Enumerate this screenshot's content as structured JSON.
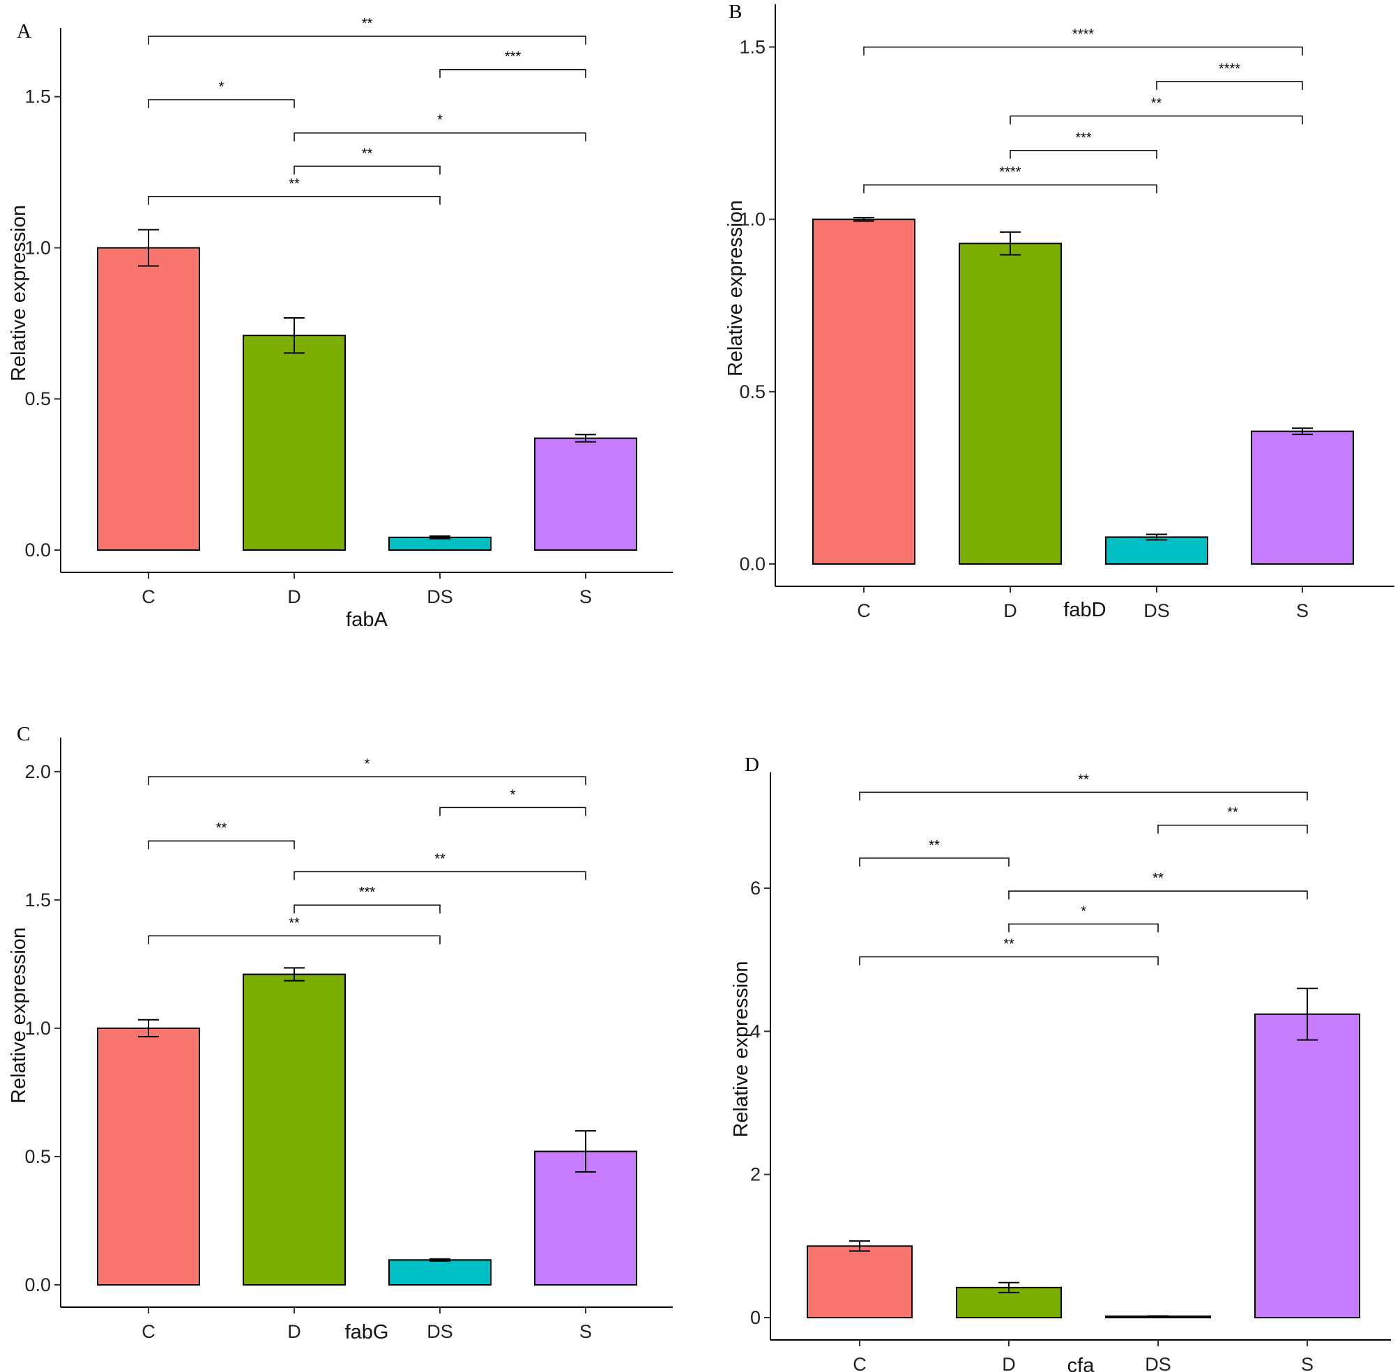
{
  "chart_data": [
    {
      "type": "bar",
      "panel_label": "A",
      "xlabel": "fabA",
      "ylabel": "Relative expression",
      "categories": [
        "C",
        "D",
        "DS",
        "S"
      ],
      "values": [
        1.0,
        0.71,
        0.042,
        0.37
      ],
      "errors": [
        0.06,
        0.058,
        0.004,
        0.012
      ],
      "ylim": [
        0,
        1.7
      ],
      "yticks": [
        0.0,
        0.5,
        1.0,
        1.5
      ],
      "ytick_labels": [
        "0.0",
        "0.5",
        "1.0",
        "1.5"
      ],
      "grid": false,
      "colors": [
        "#F8766D",
        "#7CAE00",
        "#00BFC4",
        "#C77CFF"
      ],
      "comparisons": [
        {
          "from": "C",
          "to": "DS",
          "y": 1.17,
          "label": "**"
        },
        {
          "from": "D",
          "to": "DS",
          "y": 1.27,
          "label": "**"
        },
        {
          "from": "D",
          "to": "S",
          "y": 1.38,
          "label": "*"
        },
        {
          "from": "C",
          "to": "D",
          "y": 1.49,
          "label": "*"
        },
        {
          "from": "DS",
          "to": "S",
          "y": 1.59,
          "label": "***"
        },
        {
          "from": "C",
          "to": "S",
          "y": 1.7,
          "label": "**"
        }
      ]
    },
    {
      "type": "bar",
      "panel_label": "B",
      "xlabel": "fabD",
      "ylabel": "Relative expression",
      "categories": [
        "C",
        "D",
        "DS",
        "S"
      ],
      "values": [
        1.0,
        0.93,
        0.078,
        0.385
      ],
      "errors": [
        0.005,
        0.033,
        0.008,
        0.009
      ],
      "ylim": [
        0,
        1.6
      ],
      "yticks": [
        0.0,
        0.5,
        1.0,
        1.5
      ],
      "ytick_labels": [
        "0.0",
        "0.5",
        "1.0",
        "1.5"
      ],
      "grid": false,
      "colors": [
        "#F8766D",
        "#7CAE00",
        "#00BFC4",
        "#C77CFF"
      ],
      "comparisons": [
        {
          "from": "C",
          "to": "DS",
          "y": 1.1,
          "label": "****"
        },
        {
          "from": "D",
          "to": "DS",
          "y": 1.2,
          "label": "***"
        },
        {
          "from": "D",
          "to": "S",
          "y": 1.3,
          "label": "**"
        },
        {
          "from": "DS",
          "to": "S",
          "y": 1.4,
          "label": "****"
        },
        {
          "from": "C",
          "to": "S",
          "y": 1.5,
          "label": "****"
        }
      ]
    },
    {
      "type": "bar",
      "panel_label": "C",
      "xlabel": "fabG",
      "ylabel": "Relative expression",
      "categories": [
        "C",
        "D",
        "DS",
        "S"
      ],
      "values": [
        1.0,
        1.21,
        0.097,
        0.52
      ],
      "errors": [
        0.033,
        0.025,
        0.004,
        0.08
      ],
      "ylim": [
        0,
        2.1
      ],
      "yticks": [
        0.0,
        0.5,
        1.0,
        1.5,
        2.0
      ],
      "ytick_labels": [
        "0.0",
        "0.5",
        "1.0",
        "1.5",
        "2.0"
      ],
      "grid": false,
      "colors": [
        "#F8766D",
        "#7CAE00",
        "#00BFC4",
        "#C77CFF"
      ],
      "comparisons": [
        {
          "from": "C",
          "to": "DS",
          "y": 1.36,
          "label": "**"
        },
        {
          "from": "D",
          "to": "DS",
          "y": 1.48,
          "label": "***"
        },
        {
          "from": "D",
          "to": "S",
          "y": 1.61,
          "label": "**"
        },
        {
          "from": "C",
          "to": "D",
          "y": 1.73,
          "label": "**"
        },
        {
          "from": "DS",
          "to": "S",
          "y": 1.86,
          "label": "*"
        },
        {
          "from": "C",
          "to": "S",
          "y": 1.98,
          "label": "*"
        }
      ]
    },
    {
      "type": "bar",
      "panel_label": "D",
      "xlabel": "cfa",
      "ylabel": "Relative expression",
      "categories": [
        "C",
        "D",
        "DS",
        "S"
      ],
      "values": [
        1.0,
        0.42,
        0.02,
        4.24
      ],
      "errors": [
        0.07,
        0.07,
        0.003,
        0.36
      ],
      "ylim": [
        0,
        7.5
      ],
      "yticks": [
        0,
        2,
        4,
        6
      ],
      "ytick_labels": [
        "0",
        "2",
        "4",
        "6"
      ],
      "grid": false,
      "colors": [
        "#F8766D",
        "#7CAE00",
        "#00BFC4",
        "#C77CFF"
      ],
      "comparisons": [
        {
          "from": "C",
          "to": "DS",
          "y": 5.04,
          "label": "**"
        },
        {
          "from": "D",
          "to": "DS",
          "y": 5.5,
          "label": "*"
        },
        {
          "from": "D",
          "to": "S",
          "y": 5.96,
          "label": "**"
        },
        {
          "from": "C",
          "to": "D",
          "y": 6.42,
          "label": "**"
        },
        {
          "from": "DS",
          "to": "S",
          "y": 6.88,
          "label": "**"
        },
        {
          "from": "C",
          "to": "S",
          "y": 7.34,
          "label": "**"
        }
      ]
    }
  ]
}
